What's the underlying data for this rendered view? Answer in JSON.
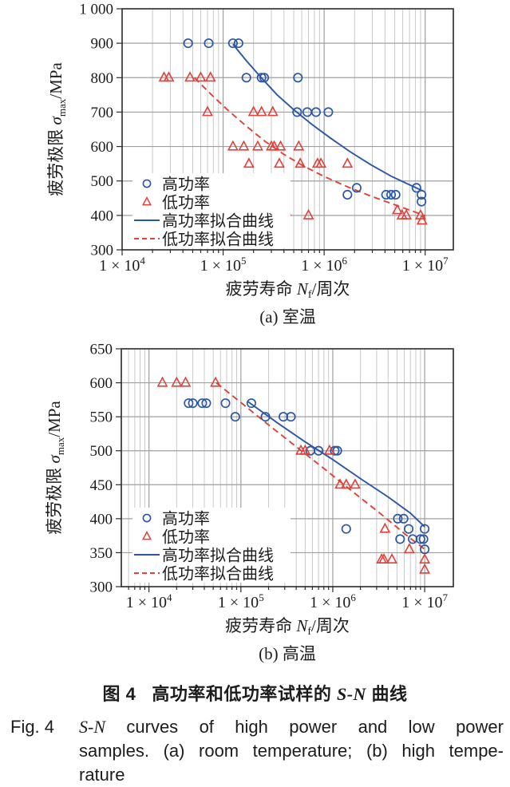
{
  "colors": {
    "high_power": "#2a56a7",
    "low_power": "#e24038",
    "grid_major": "#9f9f9f",
    "grid_minor": "#c9c9c9",
    "axis": "#2a2a2a",
    "text": "#1c1c1c"
  },
  "caption": {
    "cn_label": "图 4",
    "cn_before": "高功率和低功率试样的 ",
    "cn_italic": "S-N",
    "cn_after": " 曲线",
    "en_label": "Fig. 4",
    "en_italic": "S-N",
    "en_line1_rest": " curves of high power and low power",
    "en_line2": "samples. (a) room temperature; (b) high tempe-",
    "en_line3": "rature"
  },
  "chart_data": [
    {
      "id": "a",
      "type": "scatter",
      "subtitle": "(a) 室温",
      "x_scale": "log",
      "xlim": [
        10000.0,
        19000000.0
      ],
      "ylim": [
        300,
        1000
      ],
      "grid": true,
      "legend_position": "lower-left",
      "xlabel": {
        "prefix": "疲劳寿命 ",
        "var": "N",
        "sub": "f",
        "suffix": "/周次"
      },
      "ylabel": {
        "prefix": "疲劳极限 ",
        "var": "σ",
        "sub": "max",
        "suffix": "/MPa"
      },
      "x_ticks": [
        {
          "value": 10000.0,
          "base": "1 × 10",
          "exp": "4"
        },
        {
          "value": 100000.0,
          "base": "1 × 10",
          "exp": "5"
        },
        {
          "value": 1000000.0,
          "base": "1 × 10",
          "exp": "6"
        },
        {
          "value": 10000000.0,
          "base": "1 × 10",
          "exp": "7"
        }
      ],
      "y_ticks": [
        {
          "value": 300,
          "label": "300"
        },
        {
          "value": 400,
          "label": "400"
        },
        {
          "value": 500,
          "label": "500"
        },
        {
          "value": 600,
          "label": "600"
        },
        {
          "value": 700,
          "label": "700"
        },
        {
          "value": 800,
          "label": "800"
        },
        {
          "value": 900,
          "label": "900"
        },
        {
          "value": 1000,
          "label": "1 000"
        }
      ],
      "series": [
        {
          "key": "high-power",
          "name": "高功率",
          "kind": "scatter",
          "marker": "circle",
          "color_key": "high_power",
          "points": [
            [
              45000.0,
              900
            ],
            [
              72000.0,
              900
            ],
            [
              125000.0,
              900
            ],
            [
              142000.0,
              900
            ],
            [
              170000.0,
              800
            ],
            [
              240000.0,
              800
            ],
            [
              255000.0,
              800
            ],
            [
              550000.0,
              800
            ],
            [
              540000.0,
              700
            ],
            [
              680000.0,
              700
            ],
            [
              830000.0,
              700
            ],
            [
              1100000.0,
              700
            ],
            [
              1700000.0,
              460
            ],
            [
              2100000.0,
              480
            ],
            [
              4100000.0,
              460
            ],
            [
              4600000.0,
              460
            ],
            [
              5100000.0,
              460
            ],
            [
              8200000.0,
              480
            ],
            [
              9200000.0,
              460
            ],
            [
              9200000.0,
              440
            ]
          ]
        },
        {
          "key": "low-power",
          "name": "低功率",
          "kind": "scatter",
          "marker": "triangle",
          "color_key": "low_power",
          "points": [
            [
              26000.0,
              800
            ],
            [
              29000.0,
              800
            ],
            [
              47000.0,
              800
            ],
            [
              60000.0,
              800
            ],
            [
              75000.0,
              800
            ],
            [
              70000.0,
              700
            ],
            [
              200000.0,
              700
            ],
            [
              240000.0,
              700
            ],
            [
              310000.0,
              700
            ],
            [
              125000.0,
              600
            ],
            [
              160000.0,
              600
            ],
            [
              220000.0,
              600
            ],
            [
              300000.0,
              600
            ],
            [
              320000.0,
              600
            ],
            [
              370000.0,
              600
            ],
            [
              560000.0,
              600
            ],
            [
              180000.0,
              550
            ],
            [
              360000.0,
              550
            ],
            [
              580000.0,
              550
            ],
            [
              860000.0,
              550
            ],
            [
              930000.0,
              550
            ],
            [
              1700000.0,
              550
            ],
            [
              420000.0,
              410
            ],
            [
              700000.0,
              400
            ],
            [
              5300000.0,
              415
            ],
            [
              5900000.0,
              400
            ],
            [
              6500000.0,
              400
            ],
            [
              9000000.0,
              400
            ],
            [
              9300000.0,
              385
            ]
          ]
        },
        {
          "key": "high-power-fit",
          "name": "高功率拟合曲线",
          "kind": "line",
          "style": "solid",
          "color_key": "high_power",
          "points": [
            [
              125000.0,
              897
            ],
            [
              170000.0,
              849
            ],
            [
              240000.0,
              799
            ],
            [
              340000.0,
              751
            ],
            [
              500000.0,
              707
            ],
            [
              750000.0,
              665
            ],
            [
              1150000.0,
              625
            ],
            [
              1800000.0,
              585
            ],
            [
              2900000.0,
              547
            ],
            [
              4600000.0,
              514
            ],
            [
              7000000.0,
              489
            ],
            [
              9500000.0,
              471
            ]
          ]
        },
        {
          "key": "low-power-fit",
          "name": "低功率拟合曲线",
          "kind": "line",
          "style": "dashed",
          "color_key": "low_power",
          "points": [
            [
              52000.0,
              800
            ],
            [
              75000.0,
              753
            ],
            [
              110000.0,
              707
            ],
            [
              170000.0,
              659
            ],
            [
              260000.0,
              615
            ],
            [
              400000.0,
              577
            ],
            [
              630000.0,
              543
            ],
            [
              1000000.0,
              513
            ],
            [
              1700000.0,
              483
            ],
            [
              2900000.0,
              456
            ],
            [
              5000000.0,
              431
            ],
            [
              10000000.0,
              399
            ]
          ]
        }
      ]
    },
    {
      "id": "b",
      "type": "scatter",
      "subtitle": "(b) 高温",
      "x_scale": "log",
      "xlim": [
        5000.0,
        20500000.0
      ],
      "ylim": [
        300,
        650
      ],
      "grid": true,
      "legend_position": "lower-left",
      "xlabel": {
        "prefix": "疲劳寿命 ",
        "var": "N",
        "sub": "f",
        "suffix": "/周次"
      },
      "ylabel": {
        "prefix": "疲劳极限 ",
        "var": "σ",
        "sub": "max",
        "suffix": "/MPa"
      },
      "x_ticks": [
        {
          "value": 10000.0,
          "base": "1 × 10",
          "exp": "4"
        },
        {
          "value": 100000.0,
          "base": "1 × 10",
          "exp": "5"
        },
        {
          "value": 1000000.0,
          "base": "1 × 10",
          "exp": "6"
        },
        {
          "value": 10000000.0,
          "base": "1 × 10",
          "exp": "7"
        }
      ],
      "y_ticks": [
        {
          "value": 300,
          "label": "300"
        },
        {
          "value": 350,
          "label": "350"
        },
        {
          "value": 400,
          "label": "400"
        },
        {
          "value": 450,
          "label": "450"
        },
        {
          "value": 500,
          "label": "500"
        },
        {
          "value": 550,
          "label": "550"
        },
        {
          "value": 600,
          "label": "600"
        },
        {
          "value": 650,
          "label": "650"
        }
      ],
      "series": [
        {
          "key": "high-power",
          "name": "高功率",
          "kind": "scatter",
          "marker": "circle",
          "color_key": "high_power",
          "points": [
            [
              27000.0,
              570
            ],
            [
              30000.0,
              570
            ],
            [
              38000.0,
              570
            ],
            [
              42000.0,
              570
            ],
            [
              68000.0,
              570
            ],
            [
              130000.0,
              570
            ],
            [
              87000.0,
              550
            ],
            [
              185000.0,
              550
            ],
            [
              290000.0,
              550
            ],
            [
              350000.0,
              550
            ],
            [
              570000.0,
              500
            ],
            [
              700000.0,
              500
            ],
            [
              1050000.0,
              500
            ],
            [
              1120000.0,
              500
            ],
            [
              1400000.0,
              385
            ],
            [
              5100000.0,
              400
            ],
            [
              5900000.0,
              400
            ],
            [
              6700000.0,
              385
            ],
            [
              10000000.0,
              385
            ],
            [
              5400000.0,
              370
            ],
            [
              7400000.0,
              370
            ],
            [
              9000000.0,
              370
            ],
            [
              9700000.0,
              370
            ],
            [
              10000000.0,
              355
            ]
          ]
        },
        {
          "key": "low-power",
          "name": "低功率",
          "kind": "scatter",
          "marker": "triangle",
          "color_key": "low_power",
          "points": [
            [
              14000.0,
              600
            ],
            [
              20000.0,
              600
            ],
            [
              25000.0,
              600
            ],
            [
              53000.0,
              600
            ],
            [
              450000.0,
              500
            ],
            [
              500000.0,
              500
            ],
            [
              920000.0,
              500
            ],
            [
              1200000.0,
              450
            ],
            [
              1400000.0,
              450
            ],
            [
              1750000.0,
              450
            ],
            [
              3700000.0,
              385
            ],
            [
              6800000.0,
              355
            ],
            [
              3400000.0,
              340
            ],
            [
              3600000.0,
              340
            ],
            [
              4400000.0,
              340
            ],
            [
              10000000.0,
              340
            ],
            [
              10000000.0,
              325
            ]
          ]
        },
        {
          "key": "high-power-fit",
          "name": "高功率拟合曲线",
          "kind": "line",
          "style": "solid",
          "color_key": "high_power",
          "points": [
            [
              120000.0,
              572
            ],
            [
              250000.0,
              541
            ],
            [
              500000.0,
              513
            ],
            [
              1000000.0,
              487
            ],
            [
              2000000.0,
              459
            ],
            [
              4000000.0,
              432
            ],
            [
              7000000.0,
              408
            ],
            [
              10000000.0,
              388
            ]
          ]
        },
        {
          "key": "low-power-fit",
          "name": "低功率拟合曲线",
          "kind": "line",
          "style": "dashed",
          "color_key": "low_power",
          "points": [
            [
              54000.0,
              600
            ],
            [
              100000.0,
              571
            ],
            [
              200000.0,
              538
            ],
            [
              400000.0,
              506
            ],
            [
              800000.0,
              474
            ],
            [
              1600000.0,
              441
            ],
            [
              3200000.0,
              409
            ],
            [
              6300000.0,
              376
            ],
            [
              10000000.0,
              355
            ]
          ]
        }
      ]
    }
  ]
}
